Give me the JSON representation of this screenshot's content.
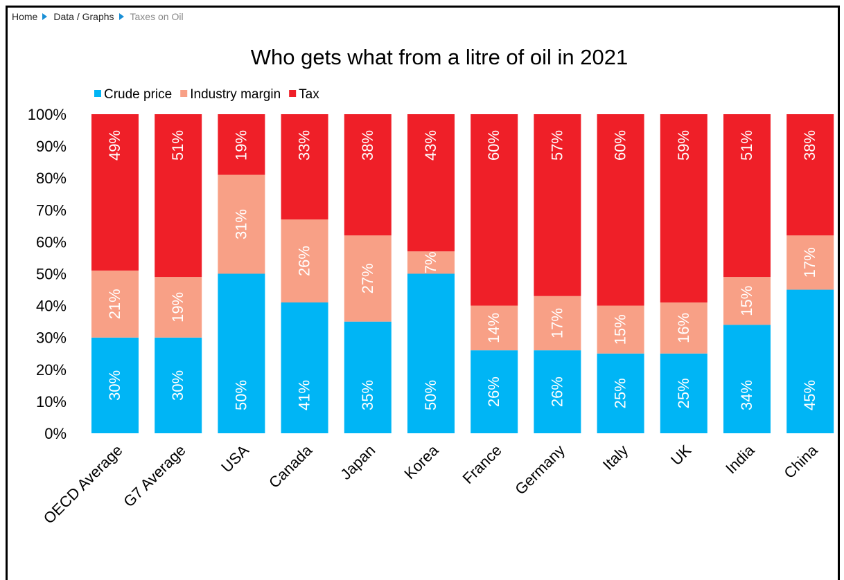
{
  "breadcrumb": [
    "Home",
    "Data / Graphs",
    "Taxes on Oil"
  ],
  "chart_data": {
    "type": "bar",
    "stacked": true,
    "title": "Who gets what from a litre of oil in 2021",
    "categories": [
      "OECD Average",
      "G7 Average",
      "USA",
      "Canada",
      "Japan",
      "Korea",
      "France",
      "Germany",
      "Italy",
      "UK",
      "India",
      "China"
    ],
    "series": [
      {
        "name": "Crude price",
        "color": "#00b5f5",
        "values": [
          30,
          30,
          50,
          41,
          35,
          50,
          26,
          26,
          25,
          25,
          34,
          45
        ]
      },
      {
        "name": "Industry margin",
        "color": "#f8a086",
        "values": [
          21,
          19,
          31,
          26,
          27,
          7,
          14,
          17,
          15,
          16,
          15,
          17
        ]
      },
      {
        "name": "Tax",
        "color": "#ef1f28",
        "values": [
          49,
          51,
          19,
          33,
          38,
          43,
          60,
          57,
          60,
          59,
          51,
          38
        ]
      }
    ],
    "data_labels": [
      [
        "30%",
        "30%",
        "50%",
        "41%",
        "35%",
        "50%",
        "26%",
        "26%",
        "25%",
        "25%",
        "34%",
        "45%"
      ],
      [
        "21%",
        "19%",
        "31%",
        "26%",
        "27%",
        "7%",
        "14%",
        "17%",
        "15%",
        "16%",
        "15%",
        "17%"
      ],
      [
        "49%",
        "51%",
        "19%",
        "33%",
        "38%",
        "43%",
        "60%",
        "57%",
        "60%",
        "59%",
        "51%",
        "38%"
      ]
    ],
    "y_ticks": [
      "0%",
      "10%",
      "20%",
      "30%",
      "40%",
      "50%",
      "60%",
      "70%",
      "80%",
      "90%",
      "100%"
    ],
    "ylim": [
      0,
      100
    ],
    "legend_position": "top-left",
    "grid": false
  }
}
